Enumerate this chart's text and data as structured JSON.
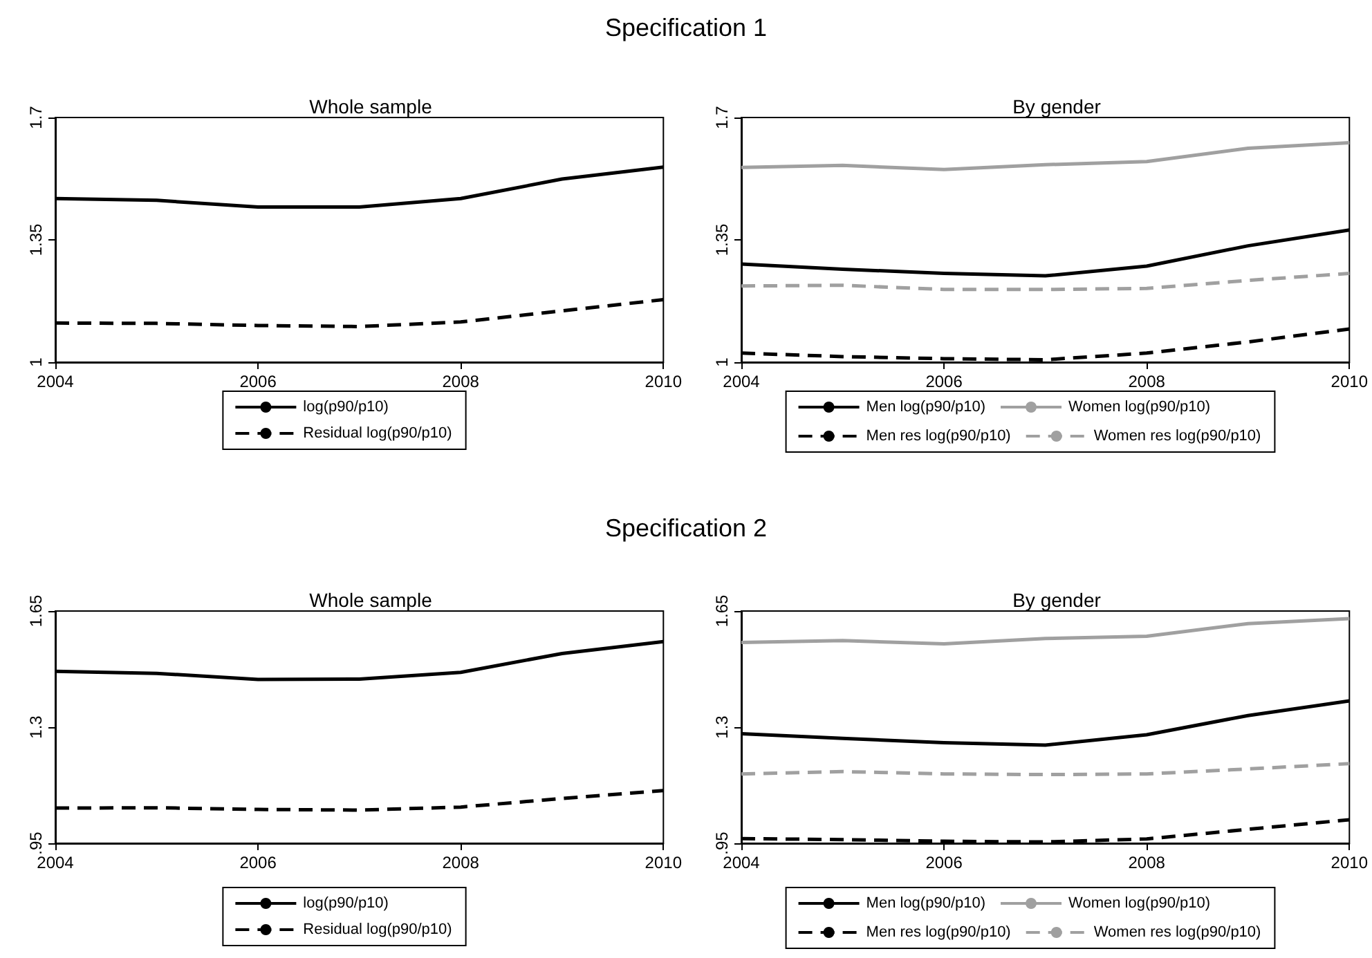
{
  "chart_data": [
    {
      "type": "line",
      "title": "Whole sample",
      "annotations": [
        "Specification 1"
      ],
      "x": [
        2004,
        2005,
        2006,
        2007,
        2008,
        2009,
        2010
      ],
      "xlim": [
        2004,
        2010
      ],
      "xticks": [
        2004,
        2006,
        2008,
        2010
      ],
      "ylim": [
        1,
        1.7
      ],
      "yticks": [
        1,
        1.35,
        1.7
      ],
      "grid": false,
      "legend": "bottom",
      "series": [
        {
          "name": "log(p90/p10)",
          "color": "#000000",
          "line_style": "solid",
          "values": [
            1.468,
            1.463,
            1.444,
            1.444,
            1.468,
            1.524,
            1.558
          ]
        },
        {
          "name": "Residual log(p90/p10)",
          "color": "#000000",
          "line_style": "dashed",
          "values": [
            1.112,
            1.111,
            1.105,
            1.102,
            1.115,
            1.147,
            1.179
          ]
        }
      ]
    },
    {
      "type": "line",
      "title": "By gender",
      "x": [
        2004,
        2005,
        2006,
        2007,
        2008,
        2009,
        2010
      ],
      "xlim": [
        2004,
        2010
      ],
      "xticks": [
        2004,
        2006,
        2008,
        2010
      ],
      "ylim": [
        1,
        1.7
      ],
      "yticks": [
        1,
        1.35,
        1.7
      ],
      "grid": false,
      "legend": "bottom",
      "series": [
        {
          "name": "Men log(p90/p10)",
          "color": "#000000",
          "line_style": "solid",
          "values": [
            1.281,
            1.266,
            1.254,
            1.247,
            1.275,
            1.333,
            1.378
          ]
        },
        {
          "name": "Women log(p90/p10)",
          "color": "#a0a0a0",
          "line_style": "solid",
          "values": [
            1.557,
            1.563,
            1.551,
            1.565,
            1.574,
            1.612,
            1.628
          ]
        },
        {
          "name": "Men res log(p90/p10)",
          "color": "#000000",
          "line_style": "dashed",
          "values": [
            1.026,
            1.016,
            1.01,
            1.007,
            1.026,
            1.058,
            1.095
          ]
        },
        {
          "name": "Women res log(p90/p10)",
          "color": "#a0a0a0",
          "line_style": "dashed",
          "values": [
            1.218,
            1.22,
            1.208,
            1.208,
            1.211,
            1.234,
            1.254
          ]
        }
      ]
    },
    {
      "type": "line",
      "title": "Whole sample",
      "annotations": [
        "Specification 2"
      ],
      "x": [
        2004,
        2005,
        2006,
        2007,
        2008,
        2009,
        2010
      ],
      "xlim": [
        2004,
        2010
      ],
      "xticks": [
        2004,
        2006,
        2008,
        2010
      ],
      "ylim": [
        0.95,
        1.65
      ],
      "yticks": [
        {
          "value": 0.95,
          "label": ".95"
        },
        1.3,
        1.65
      ],
      "grid": false,
      "legend": "bottom",
      "series": [
        {
          "name": "log(p90/p10)",
          "color": "#000000",
          "line_style": "solid",
          "values": [
            1.468,
            1.462,
            1.444,
            1.445,
            1.465,
            1.522,
            1.558
          ]
        },
        {
          "name": "Residual log(p90/p10)",
          "color": "#000000",
          "line_style": "dashed",
          "values": [
            1.056,
            1.057,
            1.052,
            1.05,
            1.059,
            1.085,
            1.109
          ]
        }
      ]
    },
    {
      "type": "line",
      "title": "By gender",
      "x": [
        2004,
        2005,
        2006,
        2007,
        2008,
        2009,
        2010
      ],
      "xlim": [
        2004,
        2010
      ],
      "xticks": [
        2004,
        2006,
        2008,
        2010
      ],
      "ylim": [
        0.95,
        1.65
      ],
      "yticks": [
        {
          "value": 0.95,
          "label": ".95"
        },
        1.3,
        1.65
      ],
      "grid": false,
      "legend": "bottom",
      "series": [
        {
          "name": "Men log(p90/p10)",
          "color": "#000000",
          "line_style": "solid",
          "values": [
            1.28,
            1.266,
            1.253,
            1.246,
            1.277,
            1.335,
            1.379
          ]
        },
        {
          "name": "Women log(p90/p10)",
          "color": "#a0a0a0",
          "line_style": "solid",
          "values": [
            1.555,
            1.561,
            1.551,
            1.567,
            1.574,
            1.612,
            1.627
          ]
        },
        {
          "name": "Men res log(p90/p10)",
          "color": "#000000",
          "line_style": "dashed",
          "values": [
            0.964,
            0.961,
            0.956,
            0.954,
            0.963,
            0.992,
            1.021
          ]
        },
        {
          "name": "Women res log(p90/p10)",
          "color": "#a0a0a0",
          "line_style": "dashed",
          "values": [
            1.159,
            1.166,
            1.159,
            1.157,
            1.159,
            1.174,
            1.19
          ]
        }
      ]
    }
  ]
}
